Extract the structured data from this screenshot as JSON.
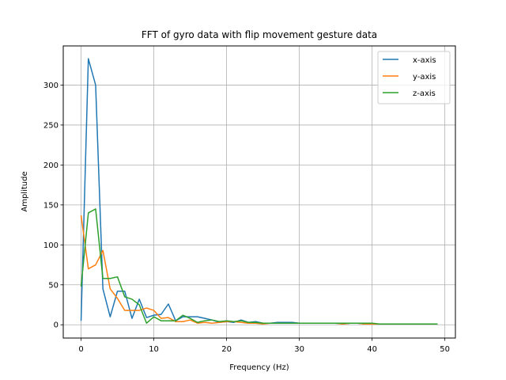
{
  "chart_data": {
    "type": "line",
    "title": "FFT of gyro data with flip movement gesture data",
    "xlabel": "Frequency (Hz)",
    "ylabel": "Amplitude",
    "xlim": [
      -2.45,
      51.45
    ],
    "ylim": [
      -16.6,
      349.0
    ],
    "xticks": [
      0,
      10,
      20,
      30,
      40,
      50
    ],
    "yticks": [
      0,
      50,
      100,
      150,
      200,
      250,
      300
    ],
    "grid": true,
    "legend_position": "upper right",
    "x": [
      0,
      1,
      2,
      3,
      4,
      5,
      6,
      7,
      8,
      9,
      10,
      11,
      12,
      13,
      14,
      15,
      16,
      17,
      18,
      19,
      20,
      21,
      22,
      23,
      24,
      25,
      26,
      27,
      28,
      29,
      30,
      31,
      32,
      33,
      34,
      35,
      36,
      37,
      38,
      39,
      40,
      41,
      42,
      43,
      44,
      45,
      46,
      47,
      48,
      49
    ],
    "series": [
      {
        "name": "x-axis",
        "color": "#1f77b4",
        "values": [
          5,
          333,
          300,
          45,
          10,
          42,
          42,
          8,
          32,
          9,
          12,
          13,
          26,
          5,
          10,
          10,
          10,
          8,
          6,
          3,
          4,
          3,
          6,
          3,
          4,
          2,
          2,
          3,
          3,
          3,
          2,
          2,
          2,
          2,
          2,
          2,
          1,
          2,
          2,
          1,
          1,
          1,
          1,
          1,
          1,
          1,
          1,
          1,
          1,
          1
        ]
      },
      {
        "name": "y-axis",
        "color": "#ff7f0e",
        "values": [
          137,
          70,
          75,
          93,
          45,
          33,
          18,
          18,
          18,
          21,
          18,
          8,
          9,
          4,
          4,
          6,
          2,
          3,
          2,
          3,
          4,
          4,
          3,
          2,
          2,
          1,
          2,
          2,
          2,
          2,
          2,
          2,
          2,
          2,
          2,
          2,
          1,
          2,
          2,
          1,
          1,
          1,
          1,
          1,
          1,
          1,
          1,
          1,
          1,
          1
        ]
      },
      {
        "name": "z-axis",
        "color": "#2ca02c",
        "values": [
          48,
          140,
          145,
          58,
          58,
          60,
          35,
          32,
          25,
          2,
          10,
          5,
          5,
          5,
          12,
          8,
          3,
          5,
          6,
          4,
          5,
          4,
          5,
          3,
          3,
          2,
          2,
          2,
          2,
          2,
          2,
          2,
          2,
          2,
          2,
          2,
          2,
          2,
          2,
          2,
          2,
          1,
          1,
          1,
          1,
          1,
          1,
          1,
          1,
          1
        ]
      }
    ]
  }
}
